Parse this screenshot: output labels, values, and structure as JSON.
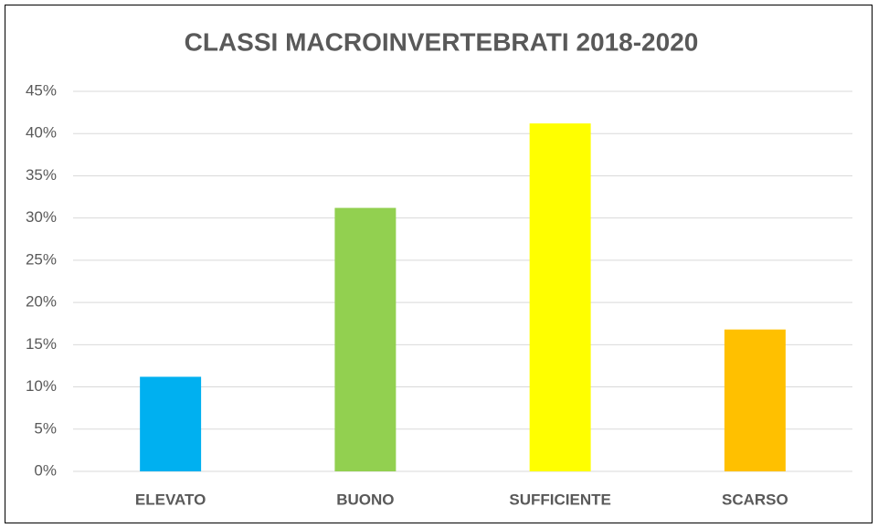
{
  "chart_data": {
    "type": "bar",
    "title": "CLASSI MACROINVERTEBRATI 2018-2020",
    "categories": [
      "ELEVATO",
      "BUONO",
      "SUFFICIENTE",
      "SCARSO"
    ],
    "values": [
      11.2,
      31.2,
      41.2,
      16.8
    ],
    "colors": [
      "#00b0f0",
      "#92d050",
      "#ffff00",
      "#ffc000"
    ],
    "ylim": [
      0,
      45
    ],
    "yticks": [
      {
        "value": 0,
        "label": "0%"
      },
      {
        "value": 5,
        "label": "5%"
      },
      {
        "value": 10,
        "label": "10%"
      },
      {
        "value": 15,
        "label": "15%"
      },
      {
        "value": 20,
        "label": "20%"
      },
      {
        "value": 25,
        "label": "25%"
      },
      {
        "value": 30,
        "label": "30%"
      },
      {
        "value": 35,
        "label": "35%"
      },
      {
        "value": 40,
        "label": "40%"
      },
      {
        "value": 45,
        "label": "45%"
      }
    ],
    "grid": true
  }
}
